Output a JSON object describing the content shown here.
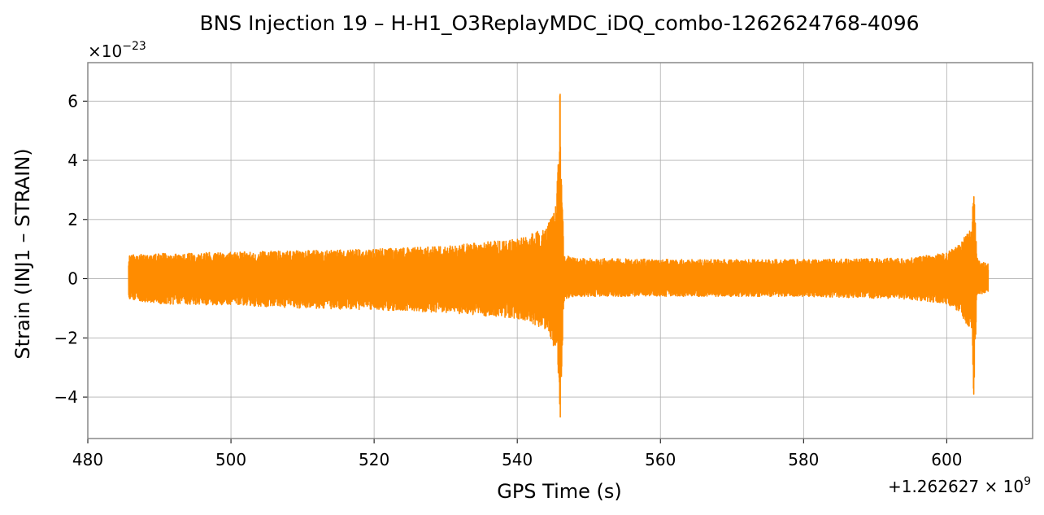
{
  "chart_data": {
    "type": "line",
    "title": "BNS Injection 19 – H-H1_O3ReplayMDC_iDQ_combo-1262624768-4096",
    "xlabel": "GPS Time (s)",
    "ylabel": "Strain (INJ1 – STRAIN)",
    "x_offset_text": "+1.262627 × 10",
    "x_offset_exp": "9",
    "y_scale_text": "×10",
    "y_scale_exp": "−23",
    "xlim": [
      480,
      612
    ],
    "ylim": [
      -5.4,
      7.3
    ],
    "x_ticks": [
      480,
      500,
      520,
      540,
      560,
      580,
      600
    ],
    "y_ticks": [
      -4,
      -2,
      0,
      2,
      4,
      6
    ],
    "y_tick_labels": [
      "−4",
      "−2",
      "0",
      "2",
      "4",
      "6"
    ],
    "grid": true,
    "color": "#ff8c00",
    "series": [
      {
        "x_start": 485.7,
        "x_end": 605.8,
        "envelope": {
          "x": [
            485.7,
            490,
            500,
            510,
            520,
            530,
            540,
            544,
            545.5,
            546,
            546.5,
            548,
            560,
            580,
            595,
            600,
            602,
            603.5,
            603.8,
            604.2,
            605,
            605.8
          ],
          "upper": [
            0.8,
            0.85,
            0.9,
            0.95,
            1.0,
            1.1,
            1.35,
            1.7,
            2.8,
            6.7,
            0.8,
            0.7,
            0.65,
            0.65,
            0.7,
            0.9,
            1.2,
            1.9,
            3.6,
            0.7,
            0.6,
            0.5
          ],
          "lower": [
            -0.7,
            -0.85,
            -0.9,
            -1.0,
            -1.05,
            -1.15,
            -1.35,
            -1.7,
            -2.6,
            -4.8,
            -0.8,
            -0.6,
            -0.6,
            -0.6,
            -0.7,
            -0.85,
            -1.2,
            -1.9,
            -4.3,
            -0.6,
            -0.5,
            -0.45
          ]
        }
      }
    ]
  }
}
